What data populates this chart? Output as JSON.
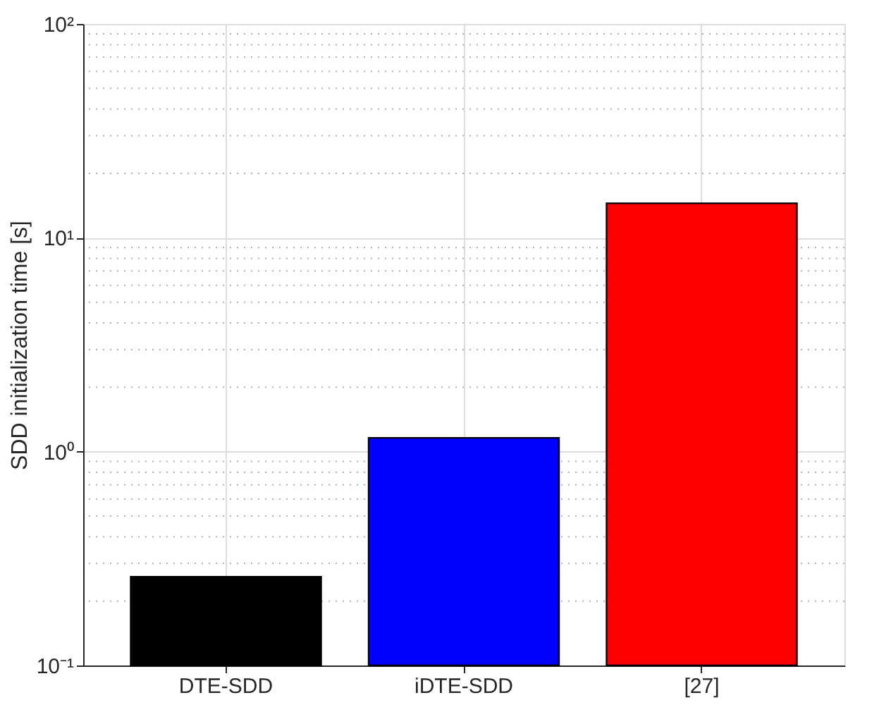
{
  "chart_data": {
    "type": "bar",
    "ylabel": "SDD initialization time [s]",
    "categories": [
      "DTE-SDD",
      "iDTE-SDD",
      "[27]"
    ],
    "values": [
      0.26,
      1.16,
      14.5
    ],
    "colors": [
      "#000000",
      "#0000ff",
      "#ff0000"
    ],
    "log": true,
    "ylim": [
      0.1,
      100
    ],
    "yticks": [
      {
        "value": 0.1,
        "label": "10⁻¹"
      },
      {
        "value": 1,
        "label": "10⁰"
      },
      {
        "value": 10,
        "label": "10¹"
      },
      {
        "value": 100,
        "label": "10²"
      }
    ],
    "grid": true
  }
}
